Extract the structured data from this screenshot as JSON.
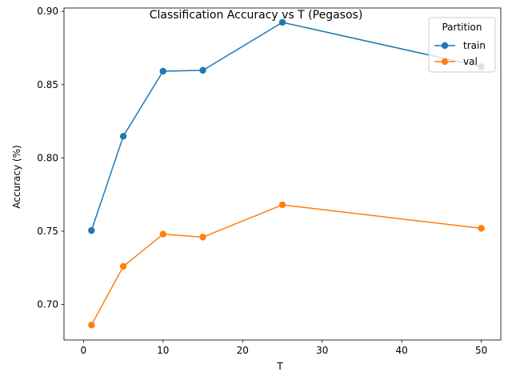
{
  "chart_data": {
    "type": "line",
    "title": "Classification Accuracy vs T (Pegasos)",
    "xlabel": "T",
    "ylabel": "Accuracy (%)",
    "xlim": [
      -2.45,
      52.45
    ],
    "ylim": [
      0.6758,
      0.9023
    ],
    "x_ticks": [
      0,
      10,
      20,
      30,
      40,
      50
    ],
    "x_tick_labels": [
      "0",
      "10",
      "20",
      "30",
      "40",
      "50"
    ],
    "y_ticks": [
      0.7,
      0.75,
      0.8,
      0.85,
      0.9
    ],
    "y_tick_labels": [
      "0.70",
      "0.75",
      "0.80",
      "0.85",
      "0.90"
    ],
    "grid": false,
    "legend": {
      "title": "Partition",
      "placement": "top-right"
    },
    "x": [
      1,
      5,
      10,
      15,
      25,
      50
    ],
    "series": [
      {
        "name": "train",
        "color": "#1f77b4",
        "values": [
          0.7505,
          0.8148,
          0.8592,
          0.8598,
          0.8925,
          0.8623
        ]
      },
      {
        "name": "val",
        "color": "#ff7f0e",
        "values": [
          0.686,
          0.726,
          0.748,
          0.746,
          0.768,
          0.752
        ]
      }
    ]
  }
}
